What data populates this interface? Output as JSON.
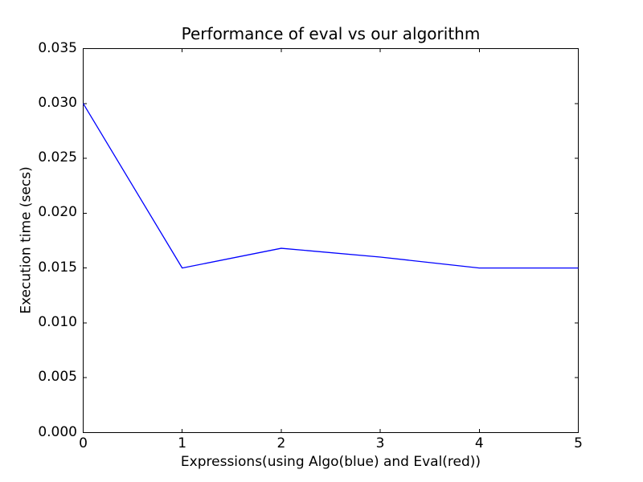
{
  "chart_data": {
    "type": "line",
    "title": "Performance of eval vs our algorithm",
    "xlabel": "Expressions(using Algo(blue) and Eval(red))",
    "ylabel": "Execution time (secs)",
    "x": [
      0,
      1,
      2,
      3,
      4,
      5
    ],
    "series": [
      {
        "name": "Algo (blue)",
        "color": "#0000ff",
        "values": [
          0.03,
          0.015,
          0.0168,
          0.016,
          0.015,
          0.015
        ]
      }
    ],
    "xlim": [
      0,
      5
    ],
    "ylim": [
      0,
      0.035
    ],
    "xticks": [
      0,
      1,
      2,
      3,
      4,
      5
    ],
    "xtick_labels": [
      "0",
      "1",
      "2",
      "3",
      "4",
      "5"
    ],
    "yticks": [
      0.0,
      0.005,
      0.01,
      0.015,
      0.02,
      0.025,
      0.03,
      0.035
    ],
    "ytick_labels": [
      "0.000",
      "0.005",
      "0.010",
      "0.015",
      "0.020",
      "0.025",
      "0.030",
      "0.035"
    ],
    "grid": false,
    "legend": null,
    "tick_direction": "in",
    "axis_color": "#000000",
    "background": "#ffffff"
  }
}
